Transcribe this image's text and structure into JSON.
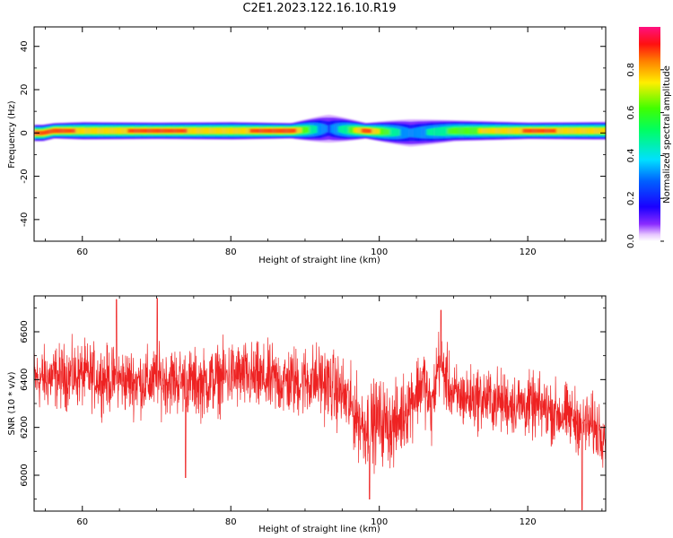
{
  "figure": {
    "title": "C2E1.2023.122.16.10.R19"
  },
  "chart_data": [
    {
      "type": "heatmap",
      "title": "",
      "xlabel": "Height of straight line (km)",
      "ylabel": "Frequency (Hz)",
      "xlim": [
        53.5,
        130.5
      ],
      "ylim": [
        -50,
        49
      ],
      "xticks": [
        60,
        80,
        100,
        120
      ],
      "yticks": [
        -40,
        -20,
        0,
        20,
        40
      ],
      "grid": false,
      "colorscale": "gist_rainbow (rainbow colormap, magenta-purple at 0, red at 1)",
      "colorbar": {
        "label": "Normalized spectral amplitude",
        "range": [
          0.0,
          1.0
        ],
        "ticks": [
          0.0,
          0.2,
          0.4,
          0.6,
          0.8
        ]
      },
      "description_points": [
        {
          "x": 54.5,
          "peak_freq_hz": 0,
          "peak_amp": 0.9
        },
        {
          "x": 56,
          "peak_freq_hz": 1,
          "peak_amp": 0.95
        },
        {
          "x": 60,
          "peak_freq_hz": 1,
          "peak_amp": 0.85
        },
        {
          "x": 70,
          "peak_freq_hz": 1,
          "peak_amp": 0.9
        },
        {
          "x": 80,
          "peak_freq_hz": 1,
          "peak_amp": 0.85
        },
        {
          "x": 88,
          "peak_freq_hz": 1,
          "peak_amp": 0.95
        },
        {
          "x": 93,
          "peak_freq_hz": 2,
          "peak_amp": 0.3
        },
        {
          "x": 98,
          "peak_freq_hz": 1,
          "peak_amp": 0.95
        },
        {
          "x": 104,
          "peak_freq_hz": 0,
          "peak_amp": 0.35
        },
        {
          "x": 110,
          "peak_freq_hz": 1,
          "peak_amp": 0.7
        },
        {
          "x": 120,
          "peak_freq_hz": 1,
          "peak_amp": 0.9
        },
        {
          "x": 129,
          "peak_freq_hz": 1,
          "peak_amp": 0.85
        }
      ]
    },
    {
      "type": "line",
      "title": "",
      "xlabel": "Height of straight line (km)",
      "ylabel": "SNR (10 * v/v)",
      "xlim": [
        53.5,
        130.5
      ],
      "ylim": [
        5850,
        6750
      ],
      "xticks": [
        60,
        80,
        100,
        120
      ],
      "yticks": [
        6000,
        6200,
        6400,
        6600
      ],
      "grid": false,
      "color": "#ee2222",
      "series": [
        {
          "trend": [
            [
              53.5,
              6400
            ],
            [
              56,
              6410
            ],
            [
              60,
              6420
            ],
            [
              64,
              6400
            ],
            [
              68,
              6390
            ],
            [
              72,
              6400
            ],
            [
              76,
              6380
            ],
            [
              80,
              6420
            ],
            [
              84,
              6400
            ],
            [
              88,
              6390
            ],
            [
              92,
              6400
            ],
            [
              95,
              6340
            ],
            [
              98,
              6200
            ],
            [
              100,
              6230
            ],
            [
              102,
              6200
            ],
            [
              104,
              6300
            ],
            [
              106,
              6400
            ],
            [
              107,
              6260
            ],
            [
              108,
              6480
            ],
            [
              110,
              6330
            ],
            [
              114,
              6320
            ],
            [
              118,
              6300
            ],
            [
              122,
              6280
            ],
            [
              126,
              6240
            ],
            [
              130.5,
              6180
            ]
          ],
          "noise_amplitude": [
            [
              53.5,
              120
            ],
            [
              80,
              130
            ],
            [
              95,
              140
            ],
            [
              100,
              160
            ],
            [
              110,
              120
            ],
            [
              130.5,
              120
            ]
          ],
          "extremes": [
            {
              "x": 64.6,
              "y": 6735
            },
            {
              "x": 70.1,
              "y": 6740
            },
            {
              "x": 108.3,
              "y": 6690
            },
            {
              "x": 98.7,
              "y": 5900
            },
            {
              "x": 127.3,
              "y": 5855
            },
            {
              "x": 73.9,
              "y": 5990
            }
          ]
        }
      ]
    }
  ]
}
